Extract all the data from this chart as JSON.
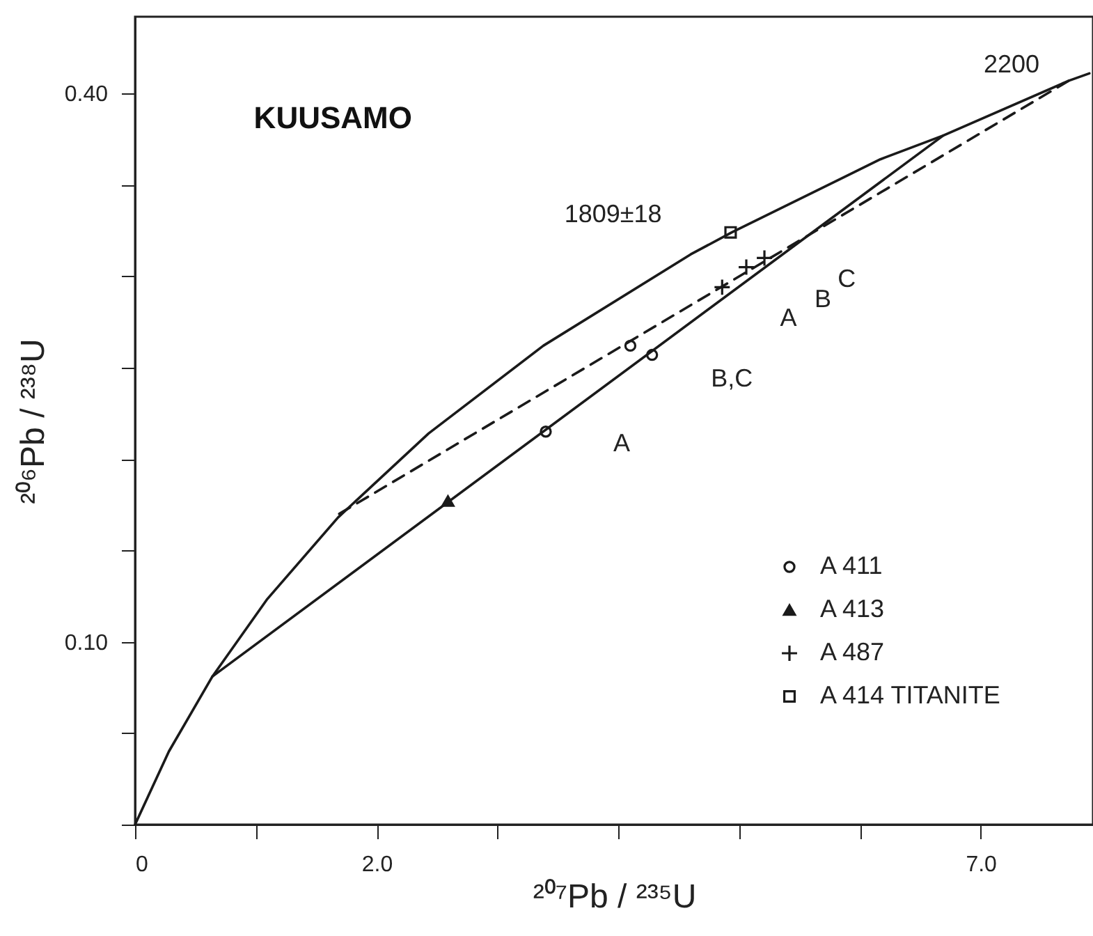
{
  "chart_data": {
    "type": "scatter",
    "title": "KUUSAMO",
    "xlabel": "²⁰⁷Pb / ²³⁵U",
    "ylabel": "²⁰⁶Pb / ²³⁸U",
    "xlim": [
      0,
      7.93
    ],
    "ylim": [
      0,
      0.442
    ],
    "xticks": [
      {
        "value": 0,
        "label": "0"
      },
      {
        "value": 1,
        "label": null
      },
      {
        "value": 2,
        "label": "2.0"
      },
      {
        "value": 3,
        "label": null
      },
      {
        "value": 4,
        "label": null
      },
      {
        "value": 5,
        "label": null
      },
      {
        "value": 6,
        "label": null
      },
      {
        "value": 7,
        "label": "7.0"
      }
    ],
    "yticks": [
      {
        "value": 0,
        "label": null
      },
      {
        "value": 0.05,
        "label": null
      },
      {
        "value": 0.1,
        "label": "0.10"
      },
      {
        "value": 0.15,
        "label": null
      },
      {
        "value": 0.2,
        "label": null
      },
      {
        "value": 0.25,
        "label": null
      },
      {
        "value": 0.3,
        "label": null
      },
      {
        "value": 0.35,
        "label": null
      },
      {
        "value": 0.4,
        "label": "0.40"
      }
    ],
    "grid": false,
    "legend": "bottom right",
    "series": [
      {
        "type": "line",
        "color": "#1a1a1a",
        "line_style": "solid",
        "x": [
          0,
          0.28,
          0.64,
          1.09,
          1.68,
          2.43,
          3.38,
          4.6,
          4.94,
          6.17,
          6.69,
          7.73,
          7.9
        ],
        "values": [
          0,
          0.04,
          0.081,
          0.123,
          0.168,
          0.214,
          0.262,
          0.312,
          0.324,
          0.364,
          0.377,
          0.407,
          0.411
        ]
      },
      {
        "type": "line",
        "color": "#1a1a1a",
        "line_style": "solid",
        "x": [
          0.64,
          6.69
        ],
        "values": [
          0.081,
          0.377
        ]
      },
      {
        "type": "line",
        "color": "#1a1a1a",
        "line_style": "dashed",
        "x": [
          1.69,
          7.73
        ],
        "values": [
          0.17,
          0.407
        ]
      },
      {
        "name": "A 411",
        "color": "#1a1a1a",
        "marker": "circle",
        "x": [
          3.4,
          4.1,
          4.28
        ],
        "values": [
          0.215,
          0.262,
          0.257
        ]
      },
      {
        "name": "A 413",
        "color": "#1a1a1a",
        "marker": "triangle",
        "x": [
          2.59
        ],
        "values": [
          0.177
        ]
      },
      {
        "name": "A 487",
        "color": "#1a1a1a",
        "marker": "cross",
        "x": [
          4.86,
          5.06,
          5.21
        ],
        "values": [
          0.294,
          0.305,
          0.31
        ]
      },
      {
        "name": "A 414 TITANITE",
        "color": "#1a1a1a",
        "marker": "square",
        "x": [
          4.93
        ],
        "values": [
          0.324
        ]
      }
    ],
    "annotations": [
      "1809±18",
      "2200",
      "A",
      "B,C",
      "A",
      "B",
      "C"
    ]
  }
}
